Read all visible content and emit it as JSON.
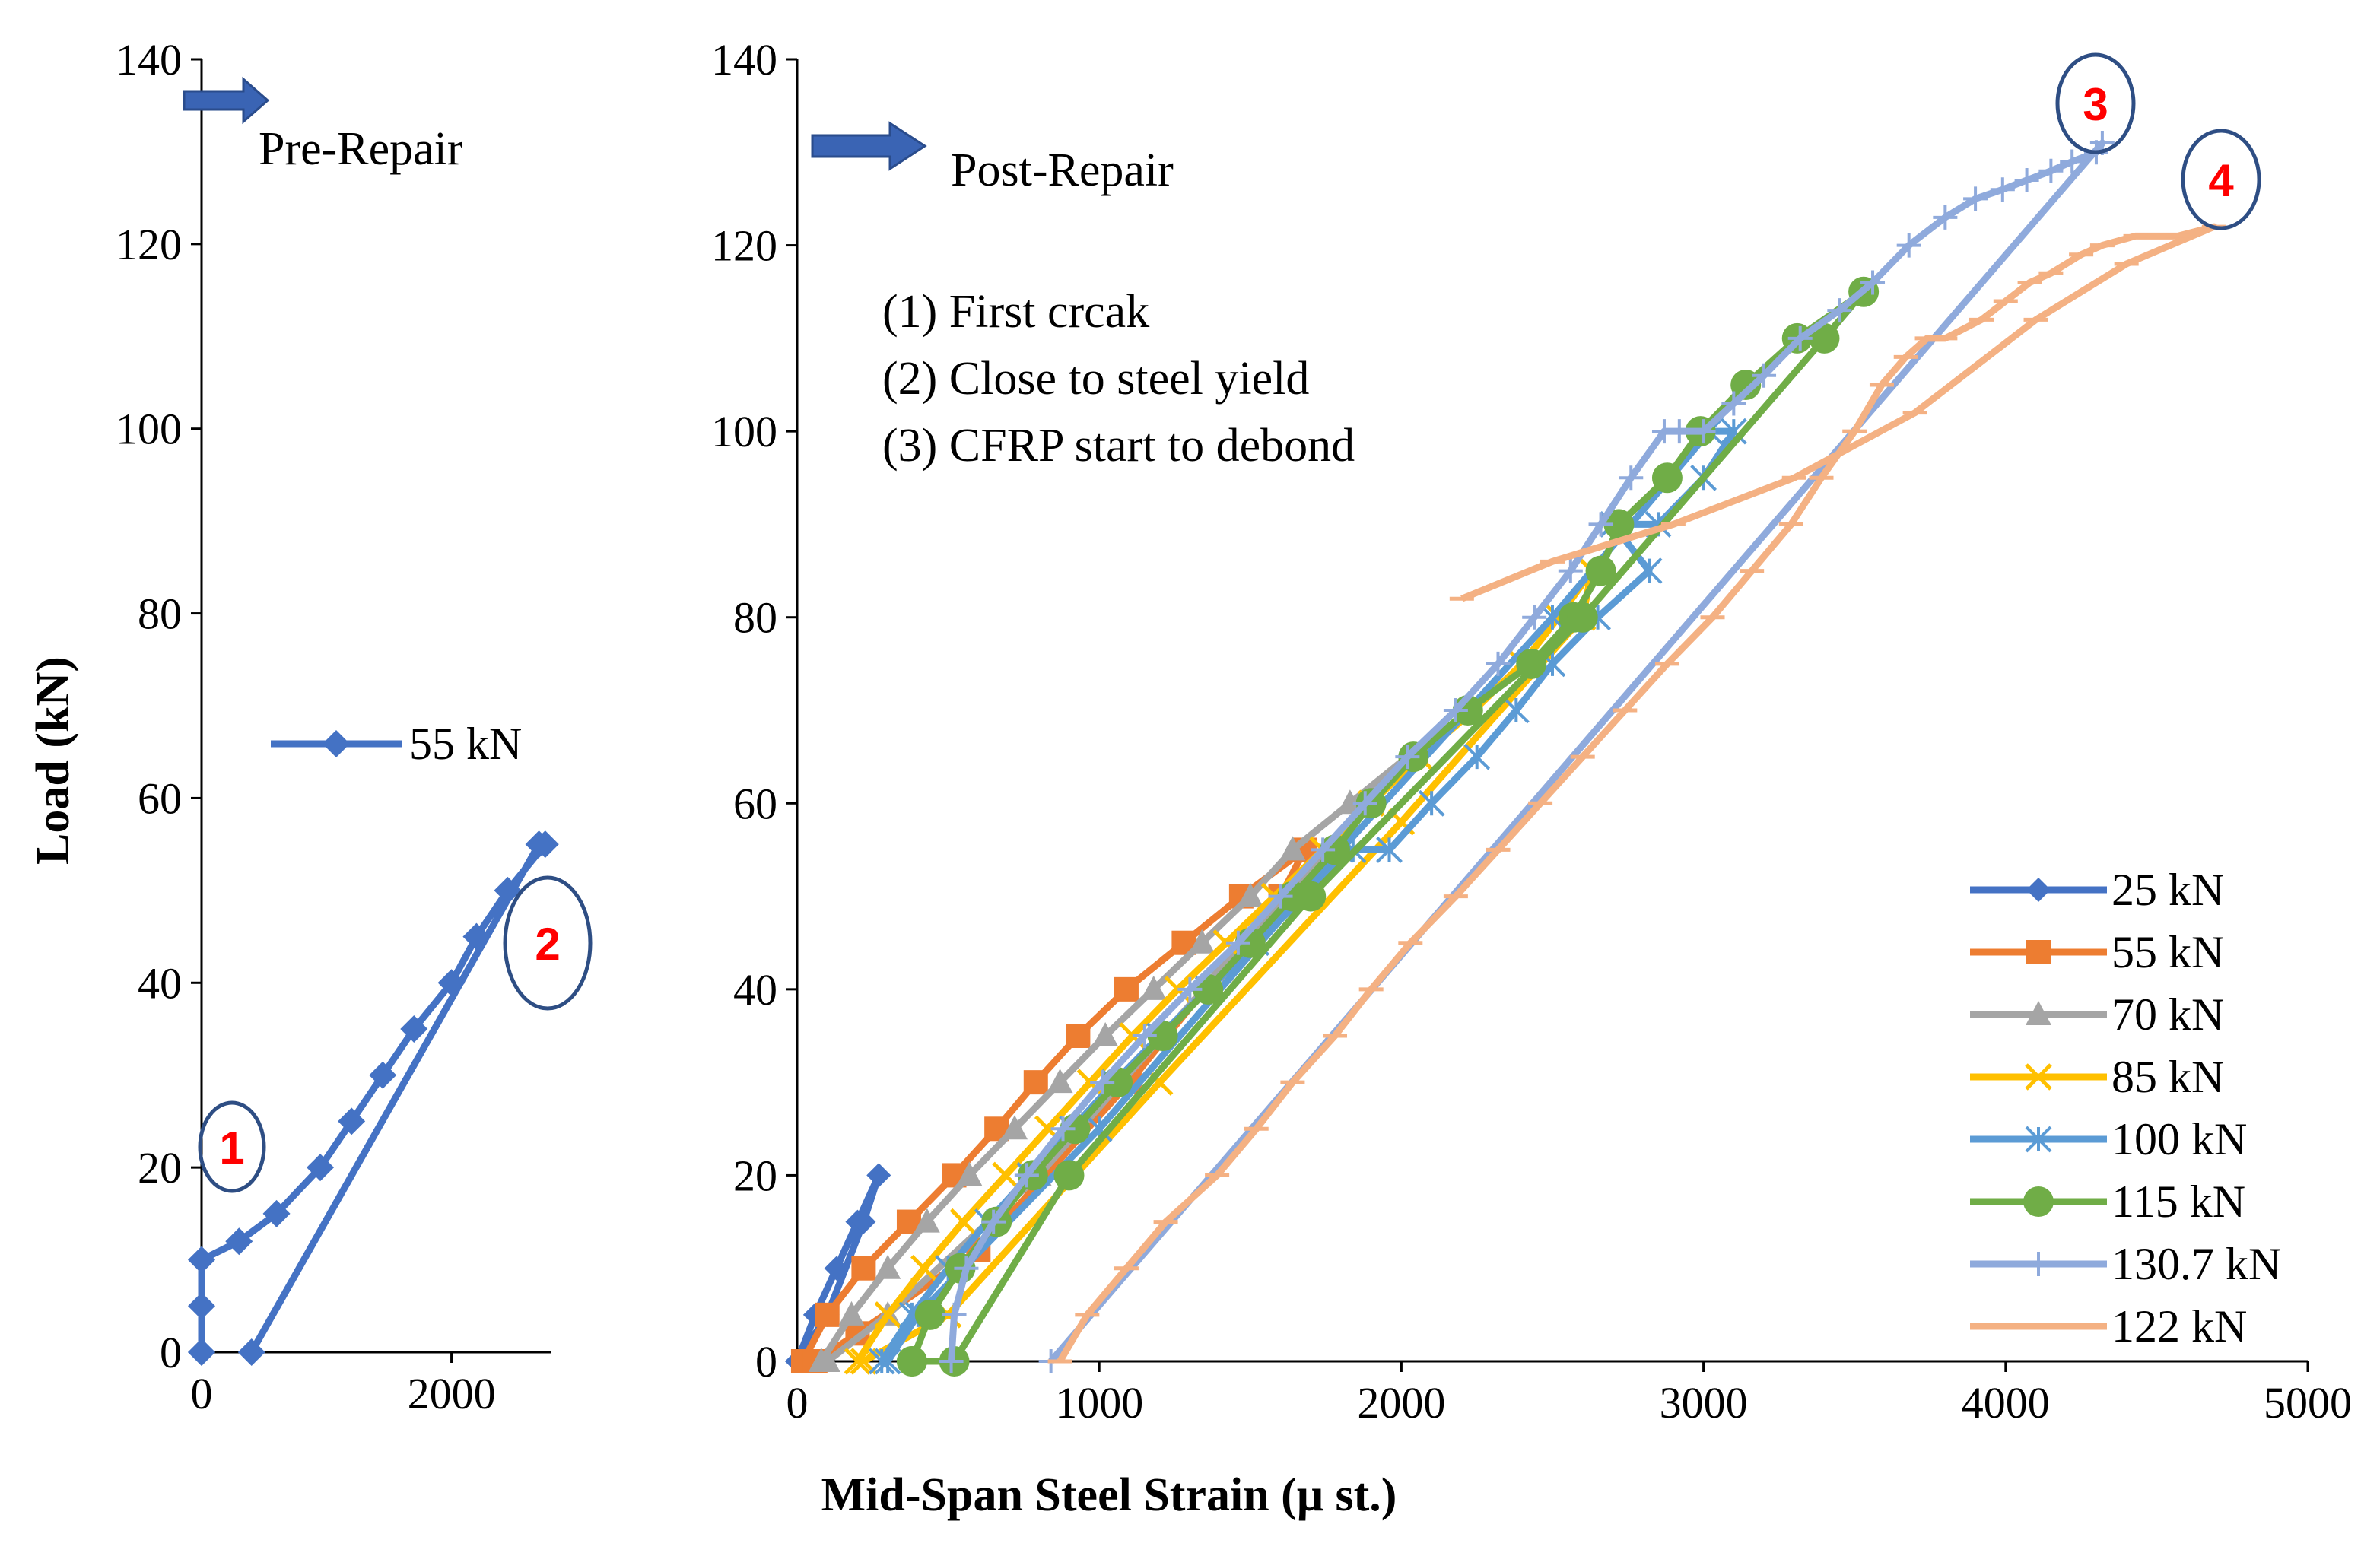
{
  "colors": {
    "s25": "#4472c4",
    "s55": "#ed7d31",
    "s70": "#a5a5a5",
    "s85": "#ffc000",
    "s100": "#5b9bd5",
    "s115": "#70ad47",
    "s130": "#8faadc",
    "s122": "#f4b183",
    "pre": "#4472c4",
    "arrow": "#3a64b4",
    "callout_ring": "#2e4e84",
    "callout_num": "#ff0000"
  },
  "ylabel": "Load  (kN)",
  "xlabel": "Mid-Span Steel Strain (μ st.)",
  "pre_title": "Pre-Repair",
  "post_title": "Post-Repair",
  "notes": [
    "(1) First crcak",
    "(2) Close to steel yield",
    "(3) CFRP start to debond"
  ],
  "callouts": [
    "1",
    "2",
    "3",
    "4"
  ],
  "chart_data": [
    {
      "type": "line",
      "title": "Pre-Repair",
      "ylabel": "Load  (kN)",
      "xlim": [
        0,
        2800
      ],
      "ylim": [
        0,
        140
      ],
      "xticks": [
        "0",
        "2000"
      ],
      "yticks": [
        "0",
        "20",
        "40",
        "60",
        "80",
        "100",
        "120",
        "140"
      ],
      "series": [
        {
          "name": "55 kN",
          "marker": "diamond",
          "x": [
            0,
            0,
            0,
            0,
            300,
            600,
            950,
            1200,
            1450,
            1700,
            2000,
            2200,
            2450,
            2750,
            2700,
            400
          ],
          "y": [
            0,
            0,
            5,
            10,
            12,
            15,
            20,
            25,
            30,
            35,
            40,
            45,
            50,
            55,
            55,
            0
          ]
        }
      ]
    },
    {
      "type": "line",
      "title": "Post-Repair",
      "xlabel": "Mid-Span Steel Strain (μ st.)",
      "xlim": [
        0,
        5000
      ],
      "ylim": [
        0,
        140
      ],
      "xticks": [
        "0",
        "1000",
        "2000",
        "3000",
        "4000",
        "5000"
      ],
      "yticks": [
        "0",
        "20",
        "40",
        "60",
        "80",
        "100",
        "120",
        "140"
      ],
      "series": [
        {
          "name": "25 kN",
          "marker": "diamond",
          "x": [
            0,
            60,
            130,
            200,
            270,
            220,
            100,
            0
          ],
          "y": [
            0,
            5,
            10,
            15,
            20,
            15,
            5,
            0
          ]
        },
        {
          "name": "55 kN",
          "marker": "square",
          "x": [
            20,
            100,
            220,
            370,
            520,
            660,
            790,
            930,
            1090,
            1280,
            1470,
            1680,
            1600,
            1100,
            600,
            200,
            60
          ],
          "y": [
            0,
            5,
            10,
            15,
            20,
            25,
            30,
            35,
            40,
            45,
            50,
            55,
            50,
            30,
            12,
            3,
            0
          ]
        },
        {
          "name": "70 kN",
          "marker": "triangle",
          "x": [
            80,
            180,
            300,
            430,
            570,
            720,
            870,
            1020,
            1180,
            1340,
            1500,
            1640,
            1830,
            2020,
            1900,
            1400,
            800,
            300,
            100
          ],
          "y": [
            0,
            5,
            10,
            15,
            20,
            25,
            30,
            35,
            40,
            45,
            50,
            55,
            60,
            65,
            60,
            42,
            20,
            5,
            0
          ]
        },
        {
          "name": "85 kN",
          "marker": "x",
          "x": [
            200,
            300,
            420,
            550,
            690,
            830,
            970,
            1110,
            1260,
            1420,
            1580,
            1740,
            1900,
            2060,
            2240,
            2400,
            2520,
            2630,
            2600,
            2000,
            1200,
            500,
            220
          ],
          "y": [
            0,
            5,
            10,
            15,
            20,
            25,
            30,
            35,
            40,
            45,
            50,
            55,
            60,
            65,
            70,
            75,
            80,
            85,
            80,
            58,
            30,
            5,
            0
          ]
        },
        {
          "name": "100 kN",
          "marker": "star",
          "x": [
            280,
            380,
            500,
            630,
            770,
            910,
            1050,
            1200,
            1360,
            1520,
            1680,
            1840,
            1960,
            2100,
            2250,
            2380,
            2500,
            2650,
            2820,
            2700,
            2850,
            3000,
            3100,
            3020,
            2500,
            1800,
            1000,
            400,
            300
          ],
          "y": [
            0,
            5,
            10,
            15,
            20,
            25,
            30,
            35,
            40,
            45,
            50,
            55,
            55,
            60,
            65,
            70,
            75,
            80,
            85,
            90,
            90,
            95,
            100,
            100,
            80,
            55,
            25,
            5,
            0
          ]
        },
        {
          "name": "115 kN",
          "marker": "circle",
          "x": [
            380,
            440,
            540,
            660,
            780,
            920,
            1060,
            1210,
            1360,
            1500,
            1640,
            1780,
            1900,
            2040,
            2220,
            2430,
            2570,
            2660,
            2720,
            2880,
            2990,
            3140,
            3310,
            3530,
            3400,
            2600,
            1700,
            900,
            520,
            380
          ],
          "y": [
            0,
            5,
            10,
            15,
            20,
            25,
            30,
            35,
            40,
            45,
            50,
            55,
            60,
            65,
            70,
            75,
            80,
            85,
            90,
            95,
            100,
            105,
            110,
            115,
            110,
            80,
            50,
            20,
            0,
            0
          ]
        },
        {
          "name": "130.7 kN",
          "marker": "plus",
          "x": [
            510,
            520,
            560,
            650,
            760,
            880,
            1010,
            1150,
            1300,
            1460,
            1600,
            1740,
            1880,
            2020,
            2180,
            2320,
            2440,
            2560,
            2660,
            2760,
            2870,
            2920,
            3000,
            3100,
            3200,
            3320,
            3450,
            3560,
            3680,
            3800,
            3900,
            3990,
            4070,
            4150,
            4220,
            4300,
            4320,
            840
          ],
          "y": [
            0,
            5,
            10,
            15,
            20,
            25,
            30,
            35,
            40,
            45,
            50,
            55,
            60,
            65,
            70,
            75,
            80,
            85,
            90,
            95,
            100,
            100,
            100,
            103,
            106,
            110,
            113,
            116,
            120,
            123,
            125,
            126,
            127,
            128,
            129,
            130,
            131,
            0
          ]
        },
        {
          "name": "122 kN",
          "marker": "dash",
          "x": [
            870,
            960,
            1090,
            1220,
            1390,
            1520,
            1640,
            1780,
            1900,
            2030,
            2180,
            2320,
            2460,
            2600,
            2740,
            2880,
            3030,
            3160,
            3290,
            3390,
            3500,
            3590,
            3670,
            3740,
            3800,
            3920,
            4000,
            4080,
            4150,
            4250,
            4320,
            4430,
            4570,
            4690,
            4400,
            4100,
            3700,
            3300,
            2900,
            2500,
            2200
          ],
          "y": [
            0,
            5,
            10,
            15,
            20,
            25,
            30,
            35,
            40,
            45,
            50,
            55,
            60,
            65,
            70,
            75,
            80,
            85,
            90,
            95,
            100,
            105,
            108,
            110,
            110,
            112,
            114,
            116,
            117,
            119,
            120,
            121,
            121,
            122,
            118,
            112,
            102,
            95,
            90,
            86,
            82
          ]
        }
      ]
    }
  ]
}
